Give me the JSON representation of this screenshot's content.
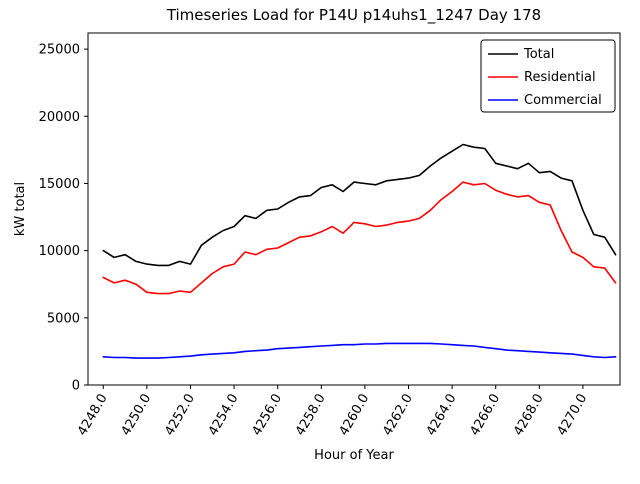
{
  "chart_data": {
    "type": "line",
    "title": "Timeseries Load for P14U p14uhs1_1247  Day 178",
    "xlabel": "Hour of Year",
    "ylabel": "kW total",
    "xlim": [
      4247.3,
      4271.7
    ],
    "ylim": [
      0,
      26200
    ],
    "grid": false,
    "legend_position": "upper-right",
    "xticks": {
      "values": [
        4248,
        4250,
        4252,
        4254,
        4256,
        4258,
        4260,
        4262,
        4264,
        4266,
        4268,
        4270
      ],
      "labels": [
        "4248.0",
        "4250.0",
        "4252.0",
        "4254.0",
        "4256.0",
        "4258.0",
        "4260.0",
        "4262.0",
        "4264.0",
        "4266.0",
        "4268.0",
        "4270.0"
      ]
    },
    "yticks": {
      "values": [
        0,
        5000,
        10000,
        15000,
        20000,
        25000
      ],
      "labels": [
        "0",
        "5000",
        "10000",
        "15000",
        "20000",
        "25000"
      ]
    },
    "x": [
      4248.0,
      4248.5,
      4249.0,
      4249.5,
      4250.0,
      4250.5,
      4251.0,
      4251.5,
      4252.0,
      4252.5,
      4253.0,
      4253.5,
      4254.0,
      4254.5,
      4255.0,
      4255.5,
      4256.0,
      4256.5,
      4257.0,
      4257.5,
      4258.0,
      4258.5,
      4259.0,
      4259.5,
      4260.0,
      4260.5,
      4261.0,
      4261.5,
      4262.0,
      4262.5,
      4263.0,
      4263.5,
      4264.0,
      4264.5,
      4265.0,
      4265.5,
      4266.0,
      4266.5,
      4267.0,
      4267.5,
      4268.0,
      4268.5,
      4269.0,
      4269.5,
      4270.0,
      4270.5,
      4271.0,
      4271.5
    ],
    "series": [
      {
        "name": "Total",
        "color": "#000000",
        "values": [
          10000,
          9500,
          9700,
          9200,
          9000,
          8900,
          8900,
          9200,
          9000,
          10400,
          11000,
          11500,
          11800,
          12600,
          12400,
          13000,
          13100,
          13600,
          14000,
          14100,
          14700,
          14900,
          14400,
          15100,
          15000,
          14900,
          15200,
          15300,
          15400,
          15600,
          16300,
          16900,
          17400,
          17900,
          17700,
          17600,
          16500,
          16300,
          16100,
          16500,
          15800,
          15900,
          15400,
          15200,
          13000,
          11200,
          11000,
          9700
        ]
      },
      {
        "name": "Residential",
        "color": "#ff0000",
        "values": [
          8000,
          7600,
          7800,
          7500,
          6900,
          6800,
          6800,
          7000,
          6900,
          7600,
          8300,
          8800,
          9000,
          9900,
          9700,
          10100,
          10200,
          10600,
          11000,
          11100,
          11400,
          11800,
          11300,
          12100,
          12000,
          11800,
          11900,
          12100,
          12200,
          12400,
          13000,
          13800,
          14400,
          15100,
          14900,
          15000,
          14500,
          14200,
          14000,
          14100,
          13600,
          13400,
          11500,
          9900,
          9500,
          8800,
          8700,
          7600
        ]
      },
      {
        "name": "Commercial",
        "color": "#0000ff",
        "values": [
          2100,
          2050,
          2050,
          2000,
          2000,
          2000,
          2050,
          2100,
          2150,
          2250,
          2300,
          2350,
          2400,
          2500,
          2550,
          2600,
          2700,
          2750,
          2800,
          2850,
          2900,
          2950,
          3000,
          3000,
          3050,
          3050,
          3100,
          3100,
          3100,
          3100,
          3100,
          3050,
          3000,
          2950,
          2900,
          2800,
          2700,
          2600,
          2550,
          2500,
          2450,
          2400,
          2350,
          2300,
          2200,
          2100,
          2050,
          2100
        ]
      }
    ]
  }
}
